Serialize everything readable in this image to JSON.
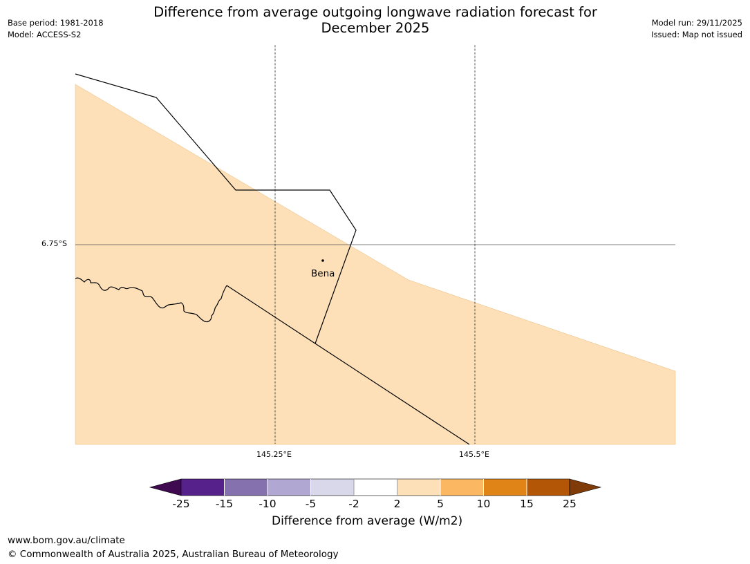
{
  "title": {
    "line1": "Difference from average outgoing longwave radiation forecast for",
    "line2": "December 2025"
  },
  "meta_left": {
    "base_period": "Base period: 1981-2018",
    "model": "Model: ACCESS-S2"
  },
  "meta_right": {
    "model_run": "Model run: 29/11/2025",
    "issued": "Issued: Map not issued"
  },
  "map": {
    "lat_label": "6.75°S",
    "lon_labels": [
      "145.25°E",
      "145.5°E"
    ],
    "town": "Bena",
    "colors": {
      "fill_2_5": "#fde0b8",
      "background": "#ffffff"
    }
  },
  "legend": {
    "title": "Difference from average (W/m2)",
    "ticks": [
      "-25",
      "-15",
      "-10",
      "-5",
      "-2",
      "2",
      "5",
      "10",
      "15",
      "25"
    ],
    "colors": [
      "#3f0a4f",
      "#56218b",
      "#8471ae",
      "#b0a7d2",
      "#d9d8ea",
      "#ffffff",
      "#fde0b8",
      "#fbb762",
      "#e08418",
      "#b35706",
      "#7f3b08"
    ]
  },
  "footer": {
    "url": "www.bom.gov.au/climate",
    "copyright": "© Commonwealth of Australia 2025, Australian Bureau of Meteorology"
  }
}
